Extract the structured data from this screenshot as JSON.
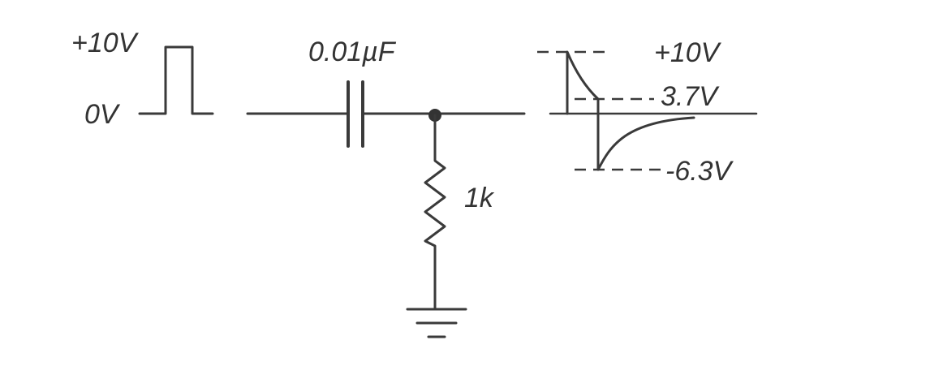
{
  "input_pulse": {
    "high_label": "+10V",
    "low_label": "0V"
  },
  "capacitor": {
    "label": "0.01µF"
  },
  "resistor": {
    "label": "1k"
  },
  "output_waveform": {
    "high_label": "+10V",
    "mid_label": "3.7V",
    "low_label": "-6.3V"
  }
}
